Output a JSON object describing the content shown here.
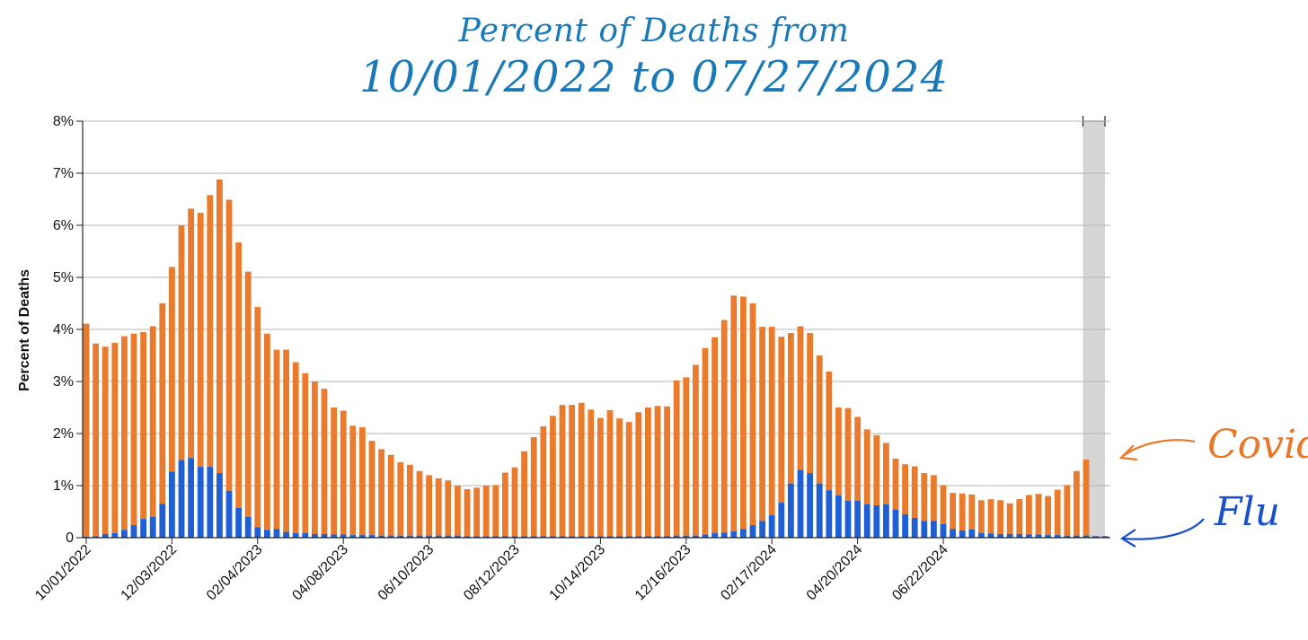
{
  "title": {
    "line1": "Percent of Deaths from",
    "line2": "10/01/2022 to 07/27/2024"
  },
  "annotations": {
    "covid": "Covid",
    "flu": "Flu"
  },
  "colors": {
    "covid": "#ea7a2c",
    "flu": "#1f5fd6",
    "grid": "#b5b5b5",
    "incomplete_shade": "#d6d6d6",
    "covid_annotation": "#e8792a",
    "flu_annotation": "#1a4fc7",
    "title": "#1a7ab8"
  },
  "chart_data": {
    "type": "bar",
    "stacked": true,
    "ylabel": "Percent of Deaths",
    "ylim": [
      0,
      8
    ],
    "yticks": [
      "0",
      "1%",
      "2%",
      "3%",
      "4%",
      "5%",
      "6%",
      "7%",
      "8%"
    ],
    "xticks": [
      "10/01/2022",
      "12/03/2022",
      "02/04/2023",
      "04/08/2023",
      "06/10/2023",
      "08/12/2023",
      "10/14/2023",
      "12/16/2023",
      "02/17/2024",
      "04/20/2024",
      "06/22/2024"
    ],
    "grid": true,
    "incomplete_data_weeks": 3,
    "series": [
      {
        "name": "Flu",
        "values": [
          0.02,
          0.03,
          0.07,
          0.09,
          0.15,
          0.24,
          0.36,
          0.4,
          0.65,
          1.27,
          1.49,
          1.53,
          1.36,
          1.36,
          1.24,
          0.9,
          0.57,
          0.4,
          0.2,
          0.15,
          0.17,
          0.11,
          0.09,
          0.09,
          0.07,
          0.07,
          0.06,
          0.06,
          0.05,
          0.05,
          0.05,
          0.04,
          0.04,
          0.04,
          0.04,
          0.04,
          0.04,
          0.04,
          0.04,
          0.04,
          0.03,
          0.03,
          0.03,
          0.03,
          0.03,
          0.03,
          0.03,
          0.03,
          0.03,
          0.03,
          0.03,
          0.03,
          0.03,
          0.03,
          0.03,
          0.03,
          0.03,
          0.03,
          0.03,
          0.03,
          0.03,
          0.03,
          0.04,
          0.04,
          0.04,
          0.06,
          0.09,
          0.1,
          0.12,
          0.17,
          0.24,
          0.32,
          0.43,
          0.67,
          1.04,
          1.3,
          1.24,
          1.04,
          0.91,
          0.81,
          0.71,
          0.71,
          0.64,
          0.62,
          0.64,
          0.54,
          0.45,
          0.38,
          0.32,
          0.32,
          0.26,
          0.17,
          0.14,
          0.16,
          0.09,
          0.08,
          0.07,
          0.07,
          0.07,
          0.06,
          0.06,
          0.05,
          0.05,
          0.04,
          0.04,
          0.04,
          0.03,
          0.03
        ]
      },
      {
        "name": "Covid",
        "values": [
          4.09,
          3.7,
          3.6,
          3.65,
          3.72,
          3.68,
          3.59,
          3.66,
          3.85,
          3.93,
          4.51,
          4.79,
          4.88,
          5.22,
          5.64,
          5.59,
          5.1,
          4.71,
          4.23,
          3.77,
          3.44,
          3.5,
          3.28,
          3.07,
          2.93,
          2.79,
          2.44,
          2.38,
          2.1,
          2.07,
          1.81,
          1.66,
          1.55,
          1.41,
          1.36,
          1.24,
          1.16,
          1.1,
          1.06,
          0.96,
          0.9,
          0.93,
          0.97,
          0.98,
          1.22,
          1.32,
          1.63,
          1.9,
          2.11,
          2.31,
          2.52,
          2.52,
          2.56,
          2.43,
          2.27,
          2.42,
          2.26,
          2.19,
          2.38,
          2.47,
          2.5,
          2.49,
          2.98,
          3.04,
          3.28,
          3.58,
          3.76,
          4.08,
          4.53,
          4.46,
          4.26,
          3.73,
          3.62,
          3.19,
          2.89,
          2.76,
          2.69,
          2.46,
          2.28,
          1.69,
          1.78,
          1.61,
          1.44,
          1.35,
          1.18,
          0.98,
          0.96,
          0.99,
          0.92,
          0.88,
          0.75,
          0.69,
          0.71,
          0.67,
          0.63,
          0.66,
          0.65,
          0.59,
          0.67,
          0.76,
          0.78,
          0.75,
          0.87,
          0.97,
          1.24,
          1.46
        ]
      }
    ]
  }
}
